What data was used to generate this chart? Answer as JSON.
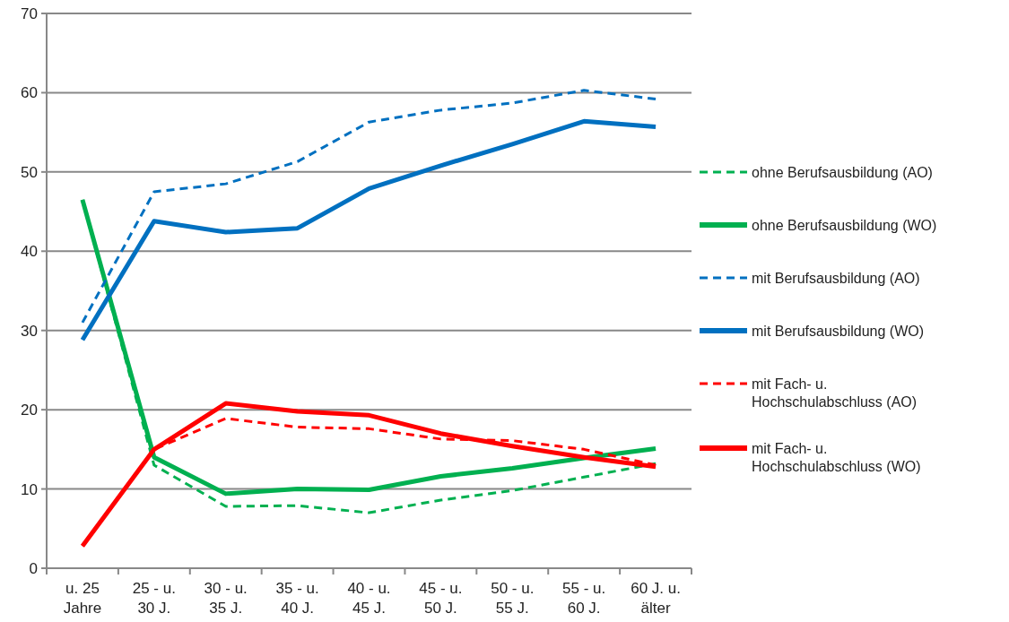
{
  "chart_data": {
    "type": "line",
    "categories": [
      "u. 25 Jahre",
      "25 - u. 30 J.",
      "30 - u. 35 J.",
      "35 - u. 40 J.",
      "40 - u. 45 J.",
      "45 - u. 50 J.",
      "50 - u. 55 J.",
      "55 - u. 60 J.",
      "60 J. u. älter"
    ],
    "ylim": [
      0,
      70
    ],
    "yticks": [
      0,
      10,
      20,
      30,
      40,
      50,
      60,
      70
    ],
    "grid": "y",
    "legend": "right",
    "marker": "none",
    "series": [
      {
        "name": "ohne Berufsausbildung (AO)",
        "color": "#00b050",
        "line_style": "dashed",
        "values": [
          46.5,
          13,
          7.8,
          7.9,
          7.0,
          8.6,
          9.8,
          11.5,
          13.2
        ]
      },
      {
        "name": "ohne Berufsausbildung (WO)",
        "color": "#00b050",
        "line_style": "solid",
        "values": [
          46.5,
          14,
          9.4,
          10.0,
          9.9,
          11.6,
          12.6,
          13.9,
          15.1
        ]
      },
      {
        "name": "mit Berufsausbildung (AO)",
        "color": "#0070c0",
        "line_style": "dashed",
        "values": [
          31,
          47.5,
          48.5,
          51.3,
          56.3,
          57.8,
          58.7,
          60.3,
          59.2
        ]
      },
      {
        "name": "mit Berufsausbildung (WO)",
        "color": "#0070c0",
        "line_style": "solid",
        "values": [
          28.8,
          43.8,
          42.4,
          42.9,
          47.9,
          50.8,
          53.5,
          56.4,
          55.7
        ]
      },
      {
        "name": "mit Fach- u. Hochschulabschluss (AO)",
        "color": "#ff0000",
        "line_style": "dashed",
        "values": [
          2.8,
          15,
          18.9,
          17.8,
          17.6,
          16.3,
          16.1,
          15,
          13
        ]
      },
      {
        "name": "mit Fach- u. Hochschulabschluss (WO)",
        "color": "#ff0000",
        "line_style": "solid",
        "values": [
          2.8,
          15,
          20.8,
          19.8,
          19.3,
          17,
          15.4,
          14,
          12.8
        ]
      }
    ]
  }
}
